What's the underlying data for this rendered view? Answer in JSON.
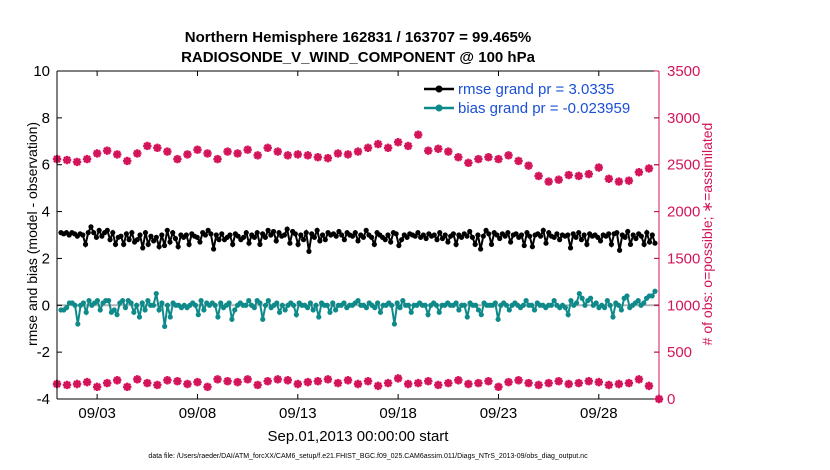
{
  "chart_data": {
    "type": "line",
    "title": "Northern Hemisphere 162831 / 163707 = 99.465%",
    "subtitle": "RADIOSONDE_V_WIND_COMPONENT @ 100 hPa",
    "xlabel": "Sep.01,2013 00:00:00 start",
    "ylabel_left": "rmse and bias (model - observation)",
    "ylabel_right": "# of obs: o=possible; ∗=assimilated",
    "footnote": "data file: /Users/raeder/DAI/ATM_forcXX/CAM6_setup/f.e21.FHIST_BGC.f09_025.CAM6assim.011/Diags_NTrS_2013-09/obs_diag_output.nc",
    "x_tick_labels": [
      "09/03",
      "09/08",
      "09/13",
      "09/18",
      "09/23",
      "09/28"
    ],
    "x_ticks": [
      3,
      8,
      13,
      18,
      23,
      28
    ],
    "xlim": [
      1,
      31
    ],
    "ylim_left": [
      -4,
      10
    ],
    "y_ticks_left": [
      -4,
      -2,
      0,
      2,
      4,
      6,
      8,
      10
    ],
    "ylim_right": [
      0,
      3500
    ],
    "y_ticks_right": [
      0,
      500,
      1000,
      1500,
      2000,
      2500,
      3000,
      3500
    ],
    "grid": false,
    "legend_position": "top-right",
    "colors": {
      "rmse": "#000000",
      "bias": "#0f8a8a",
      "obs": "#d4145a",
      "zero_line": "#b4b4b4"
    },
    "series": [
      {
        "name": "rmse grand pr = 3.0335",
        "axis": "left",
        "values": [
          3.1,
          3.05,
          3.1,
          3.0,
          3.1,
          3.05,
          2.95,
          3.05,
          3.0,
          2.6,
          3.1,
          3.35,
          3.1,
          2.9,
          3.2,
          2.95,
          3.1,
          3.2,
          2.8,
          3.1,
          2.6,
          2.9,
          2.95,
          2.6,
          3.05,
          2.8,
          3.1,
          2.7,
          2.8,
          3.0,
          2.45,
          3.1,
          2.6,
          2.95,
          2.75,
          2.9,
          2.5,
          3.0,
          2.55,
          3.2,
          2.7,
          3.1,
          2.85,
          2.5,
          3.0,
          2.9,
          3.0,
          2.6,
          3.05,
          2.95,
          2.9,
          2.7,
          3.1,
          3.0,
          3.2,
          3.05,
          2.4,
          3.0,
          2.8,
          3.05,
          2.8,
          2.9,
          3.0,
          2.6,
          3.05,
          2.95,
          2.8,
          2.9,
          3.1,
          2.65,
          3.0,
          2.9,
          3.1,
          2.6,
          3.05,
          2.9,
          3.2,
          3.0,
          3.15,
          2.75,
          3.1,
          2.95,
          3.0,
          3.25,
          2.65,
          3.15,
          3.05,
          2.6,
          3.0,
          2.8,
          3.1,
          2.3,
          3.05,
          2.9,
          3.2,
          2.75,
          3.0,
          2.8,
          3.1,
          3.0,
          3.05,
          2.95,
          3.15,
          3.0,
          2.8,
          3.1,
          3.0,
          2.95,
          3.1,
          2.75,
          3.0,
          2.9,
          3.2,
          3.0,
          2.9,
          2.6,
          3.1,
          3.0,
          2.9,
          2.8,
          3.0,
          2.7,
          3.1,
          3.05,
          2.55,
          2.8,
          3.0,
          2.9,
          3.05,
          3.0,
          2.95,
          3.1,
          2.9,
          3.0,
          2.85,
          3.05,
          2.95,
          3.0,
          2.8,
          3.1,
          2.85,
          3.0,
          2.7,
          2.95,
          3.05,
          2.6,
          3.0,
          2.9,
          3.05,
          2.95,
          3.15,
          2.9,
          2.6,
          3.0,
          2.4,
          2.95,
          3.2,
          3.05,
          2.6,
          3.1,
          3.0,
          2.85,
          3.05,
          2.95,
          3.1,
          2.7,
          3.0,
          3.05,
          2.9,
          3.0,
          2.55,
          3.1,
          2.95,
          2.5,
          3.0,
          3.05,
          2.95,
          3.2,
          2.65,
          3.1,
          2.95,
          2.9,
          3.05,
          2.8,
          3.0,
          2.95,
          3.0,
          2.45,
          3.05,
          2.9,
          3.1,
          2.8,
          3.0,
          2.6,
          3.05,
          2.95,
          3.0,
          2.9,
          2.75,
          3.0,
          2.95,
          3.05,
          2.6,
          3.05,
          3.1,
          2.35,
          3.0,
          2.9,
          3.15,
          2.6,
          3.0,
          2.85,
          3.05,
          2.95,
          2.6,
          3.1,
          2.7,
          3.0,
          2.65
        ]
      },
      {
        "name": "bias grand pr = -0.023959",
        "axis": "left",
        "values": [
          -0.2,
          -0.2,
          -0.1,
          0.1,
          0.1,
          0.0,
          -0.8,
          0.0,
          0.1,
          -0.3,
          0.2,
          0.0,
          0.1,
          0.2,
          -0.2,
          0.1,
          0.2,
          0.2,
          -0.3,
          -0.2,
          -0.4,
          0.1,
          0.2,
          -0.1,
          0.2,
          0.1,
          -0.3,
          0.0,
          -0.5,
          0.1,
          -0.2,
          0.2,
          0.0,
          0.0,
          0.5,
          -0.2,
          0.1,
          -0.9,
          0.0,
          -0.5,
          0.1,
          0.0,
          0.0,
          -0.1,
          0.0,
          -0.1,
          0.0,
          0.1,
          0.0,
          -0.4,
          0.2,
          -0.2,
          0.1,
          0.0,
          0.1,
          0.0,
          -0.5,
          0.1,
          -0.1,
          0.0,
          0.1,
          -0.6,
          -0.2,
          0.0,
          0.1,
          0.0,
          0.0,
          0.2,
          0.0,
          -0.1,
          0.2,
          0.1,
          -0.6,
          0.0,
          0.2,
          -0.1,
          0.0,
          0.1,
          -0.3,
          0.0,
          -0.2,
          0.0,
          0.1,
          0.0,
          -0.4,
          0.1,
          0.0,
          0.0,
          -0.1,
          0.1,
          -0.2,
          0.0,
          -0.5,
          0.1,
          0.0,
          0.0,
          -0.3,
          0.1,
          -0.2,
          0.0,
          0.0,
          0.1,
          -0.1,
          0.0,
          0.0,
          0.1,
          0.2,
          0.0,
          0.0,
          -0.1,
          0.1,
          0.0,
          -0.1,
          0.1,
          -0.3,
          0.0,
          0.0,
          0.1,
          0.0,
          -0.8,
          0.1,
          -0.1,
          0.2,
          0.0,
          0.0,
          -0.3,
          0.0,
          0.0,
          0.1,
          0.0,
          0.0,
          -0.4,
          0.0,
          0.1,
          0.0,
          -0.3,
          0.0,
          0.0,
          0.1,
          0.0,
          0.0,
          0.1,
          -0.2,
          0.0,
          0.0,
          -0.5,
          0.1,
          0.0,
          0.0,
          -0.2,
          -0.4,
          0.1,
          0.0,
          0.0,
          0.0,
          0.1,
          -0.6,
          0.0,
          0.1,
          0.0,
          -0.2,
          0.0,
          0.1,
          0.0,
          -0.1,
          0.0,
          0.2,
          0.0,
          0.0,
          -0.2,
          0.1,
          0.0,
          0.0,
          -0.1,
          0.0,
          0.0,
          0.2,
          0.0,
          -0.1,
          0.0,
          -0.1,
          -0.4,
          0.2,
          0.0,
          0.1,
          0.5,
          0.3,
          0.0,
          0.2,
          0.3,
          0.0,
          0.1,
          -0.1,
          0.0,
          -0.1,
          0.2,
          0.0,
          -0.5,
          0.1,
          0.0,
          -0.2,
          0.3,
          0.4,
          -0.1,
          0.0,
          0.1,
          0.2,
          0.0,
          0.1,
          0.3,
          0.4,
          0.4,
          0.6
        ]
      },
      {
        "name": "assimilated obs",
        "axis": "right",
        "points": [
          [
            1,
            2560
          ],
          [
            1.5,
            2550
          ],
          [
            2,
            2530
          ],
          [
            2.5,
            2560
          ],
          [
            3,
            2620
          ],
          [
            3.5,
            2650
          ],
          [
            4,
            2610
          ],
          [
            4.5,
            2540
          ],
          [
            5,
            2620
          ],
          [
            5.5,
            2700
          ],
          [
            6,
            2680
          ],
          [
            6.5,
            2640
          ],
          [
            7,
            2560
          ],
          [
            7.5,
            2610
          ],
          [
            8,
            2660
          ],
          [
            8.5,
            2620
          ],
          [
            9,
            2560
          ],
          [
            9.5,
            2640
          ],
          [
            10,
            2620
          ],
          [
            10.5,
            2660
          ],
          [
            11,
            2600
          ],
          [
            11.5,
            2680
          ],
          [
            12,
            2640
          ],
          [
            12.5,
            2600
          ],
          [
            13,
            2610
          ],
          [
            13.5,
            2600
          ],
          [
            14,
            2580
          ],
          [
            14.5,
            2570
          ],
          [
            15,
            2620
          ],
          [
            15.5,
            2610
          ],
          [
            16,
            2640
          ],
          [
            16.5,
            2680
          ],
          [
            17,
            2720
          ],
          [
            17.5,
            2680
          ],
          [
            18,
            2740
          ],
          [
            18.5,
            2700
          ],
          [
            19,
            2820
          ],
          [
            19.5,
            2650
          ],
          [
            20,
            2670
          ],
          [
            20.5,
            2640
          ],
          [
            21,
            2580
          ],
          [
            21.5,
            2520
          ],
          [
            22,
            2560
          ],
          [
            22.5,
            2580
          ],
          [
            23,
            2560
          ],
          [
            23.5,
            2600
          ],
          [
            24,
            2540
          ],
          [
            24.5,
            2490
          ],
          [
            25,
            2380
          ],
          [
            25.5,
            2320
          ],
          [
            26,
            2340
          ],
          [
            26.5,
            2390
          ],
          [
            27,
            2380
          ],
          [
            27.5,
            2400
          ],
          [
            28,
            2470
          ],
          [
            28.5,
            2350
          ],
          [
            29,
            2320
          ],
          [
            29.5,
            2330
          ],
          [
            30,
            2420
          ],
          [
            30.5,
            2460
          ]
        ]
      },
      {
        "name": "possible obs",
        "axis": "right",
        "points": [
          [
            1,
            160
          ],
          [
            1.5,
            150
          ],
          [
            2,
            160
          ],
          [
            2.5,
            180
          ],
          [
            3,
            130
          ],
          [
            3.5,
            170
          ],
          [
            4,
            200
          ],
          [
            4.5,
            130
          ],
          [
            5,
            210
          ],
          [
            5.5,
            170
          ],
          [
            6,
            150
          ],
          [
            6.5,
            200
          ],
          [
            7,
            190
          ],
          [
            7.5,
            160
          ],
          [
            8,
            180
          ],
          [
            8.5,
            130
          ],
          [
            9,
            210
          ],
          [
            9.5,
            190
          ],
          [
            10,
            180
          ],
          [
            10.5,
            210
          ],
          [
            11,
            150
          ],
          [
            11.5,
            190
          ],
          [
            12,
            210
          ],
          [
            12.5,
            200
          ],
          [
            13,
            160
          ],
          [
            13.5,
            180
          ],
          [
            14,
            190
          ],
          [
            14.5,
            210
          ],
          [
            15,
            170
          ],
          [
            15.5,
            200
          ],
          [
            16,
            160
          ],
          [
            16.5,
            190
          ],
          [
            17,
            140
          ],
          [
            17.5,
            170
          ],
          [
            18,
            220
          ],
          [
            18.5,
            160
          ],
          [
            19,
            170
          ],
          [
            19.5,
            190
          ],
          [
            20,
            150
          ],
          [
            20.5,
            170
          ],
          [
            21,
            200
          ],
          [
            21.5,
            160
          ],
          [
            22,
            170
          ],
          [
            22.5,
            190
          ],
          [
            23,
            130
          ],
          [
            23.5,
            180
          ],
          [
            24,
            200
          ],
          [
            24.5,
            170
          ],
          [
            25,
            150
          ],
          [
            25.5,
            170
          ],
          [
            26,
            190
          ],
          [
            26.5,
            160
          ],
          [
            27,
            170
          ],
          [
            27.5,
            190
          ],
          [
            28,
            180
          ],
          [
            28.5,
            150
          ],
          [
            29,
            160
          ],
          [
            29.5,
            170
          ],
          [
            30,
            210
          ],
          [
            30.5,
            140
          ],
          [
            31,
            0
          ]
        ]
      }
    ]
  }
}
